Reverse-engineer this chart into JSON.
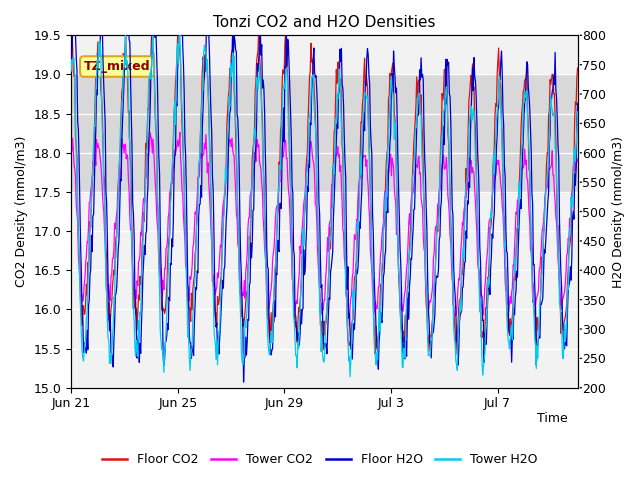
{
  "title": "Tonzi CO2 and H2O Densities",
  "xlabel": "Time",
  "ylabel_left": "CO2 Density (mmol/m3)",
  "ylabel_right": "H2O Density (mmol/m3)",
  "ylim_left": [
    15.0,
    19.5
  ],
  "ylim_right": [
    200,
    800
  ],
  "shade_band": [
    17.5,
    19.0
  ],
  "x_tick_labels": [
    "Jun 21",
    "Jun 25",
    "Jun 29",
    "Jul 3",
    "Jul 7"
  ],
  "x_tick_positions": [
    0,
    4,
    8,
    12,
    16
  ],
  "x_lim": [
    0,
    19
  ],
  "annotation_text": "TZ_mixed",
  "colors": {
    "floor_co2": "#dd1111",
    "tower_co2": "#ff00ff",
    "floor_h2o": "#0000cc",
    "tower_h2o": "#00ccee"
  },
  "legend_labels": [
    "Floor CO2",
    "Tower CO2",
    "Floor H2O",
    "Tower H2O"
  ],
  "yticks_left": [
    15.0,
    15.5,
    16.0,
    16.5,
    17.0,
    17.5,
    18.0,
    18.5,
    19.0,
    19.5
  ],
  "yticks_right": [
    200,
    250,
    300,
    350,
    400,
    450,
    500,
    550,
    600,
    650,
    700,
    750,
    800
  ],
  "n_points": 700,
  "x_start": 0,
  "x_end": 19
}
